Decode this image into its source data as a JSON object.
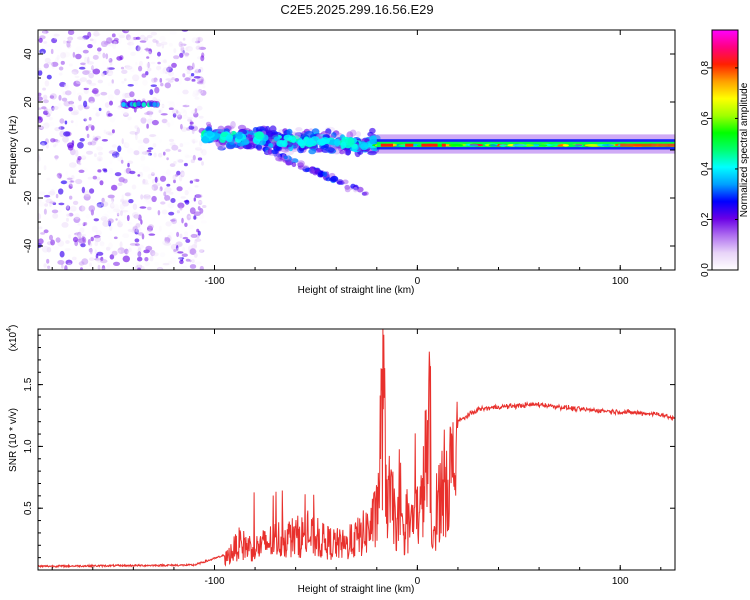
{
  "chart_data": [
    {
      "type": "heatmap",
      "title": "C2E5.2025.299.16.56.E29",
      "xlabel": "Height of straight line (km)",
      "ylabel": "Frequency (Hz)",
      "xlim": [
        -187,
        127
      ],
      "ylim": [
        -50,
        50
      ],
      "x_ticks": [
        -100,
        0,
        100
      ],
      "x_tick_labels": [
        "-100",
        "0",
        "100"
      ],
      "y_ticks": [
        -40,
        -20,
        0,
        20,
        40
      ],
      "y_tick_labels": [
        "-40",
        "-20",
        "0",
        "20",
        "40"
      ],
      "colorbar": {
        "label": "Normalized spectral amplitude",
        "range": [
          0,
          0.95
        ],
        "ticks": [
          0.0,
          0.2,
          0.4,
          0.6,
          0.8
        ],
        "tick_labels": [
          "0.0",
          "0.2",
          "0.4",
          "0.6",
          "0.8"
        ],
        "colors": [
          "#ffffff",
          "#e8d4f8",
          "#b070f0",
          "#6a00e6",
          "#0000ff",
          "#00a0ff",
          "#00ffff",
          "#00ff70",
          "#00ff00",
          "#a0ff00",
          "#ffff00",
          "#ffa000",
          "#ff2000",
          "#ff0080",
          "#ff00ff"
        ]
      },
      "regions": [
        {
          "name": "noise",
          "x_range": [
            -187,
            -105
          ],
          "y_range": [
            -50,
            50
          ],
          "amplitude": 0.25
        },
        {
          "name": "band-segment",
          "x_range": [
            -145,
            -128
          ],
          "y_center": 19,
          "amplitude": 0.42
        },
        {
          "name": "scatter-band",
          "x_range": [
            -105,
            -20
          ],
          "y_start": 6,
          "y_end": 2,
          "amplitude": 0.45
        },
        {
          "name": "lower-branch",
          "x_range": [
            -75,
            -25
          ],
          "y_start": 0,
          "y_end": -18,
          "amplitude": 0.3
        },
        {
          "name": "main-line",
          "x_range": [
            -20,
            127
          ],
          "y_center": 2,
          "amplitude": 0.9
        }
      ]
    },
    {
      "type": "line",
      "xlabel": "Height of straight line (km)",
      "ylabel": "SNR (10 * v/v)",
      "multiplier_label": "(x10",
      "multiplier_exponent": "4",
      "xlim": [
        -187,
        127
      ],
      "ylim": [
        0,
        1.95
      ],
      "x_ticks": [
        -100,
        0,
        100
      ],
      "x_tick_labels": [
        "-100",
        "0",
        "100"
      ],
      "y_ticks": [
        0.5,
        1.0,
        1.5
      ],
      "y_tick_labels": [
        "0.5",
        "1.0",
        "1.5"
      ],
      "color": "#e8302c",
      "key_points": {
        "x": [
          -187,
          -110,
          -95,
          -88,
          -80,
          -70,
          -55,
          -45,
          -35,
          -25,
          -20,
          -17,
          -15,
          -10,
          -7,
          -3,
          2,
          6,
          7,
          10,
          15,
          20,
          30,
          40,
          50,
          60,
          70,
          80,
          90,
          100,
          110,
          120,
          127
        ],
        "y": [
          0.03,
          0.04,
          0.12,
          0.3,
          0.25,
          0.35,
          0.4,
          0.32,
          0.28,
          0.45,
          0.6,
          1.95,
          0.9,
          0.55,
          0.4,
          0.55,
          0.72,
          1.65,
          0.2,
          0.8,
          1.1,
          1.2,
          1.3,
          1.32,
          1.33,
          1.34,
          1.32,
          1.3,
          1.29,
          1.28,
          1.27,
          1.26,
          1.22
        ]
      }
    }
  ]
}
